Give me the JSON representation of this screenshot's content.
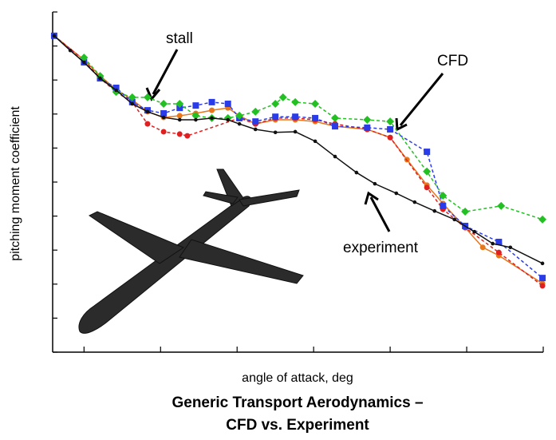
{
  "chart_data": {
    "type": "line",
    "title": [
      "Generic Transport Aerodynamics –",
      "CFD vs. Experiment"
    ],
    "xlabel": "angle of attack, deg",
    "ylabel": "pitching moment coefficient",
    "xlim": [
      -0.41,
      6
    ],
    "ylim": [
      0,
      10
    ],
    "xticks": [
      0,
      1,
      2,
      3,
      4,
      5,
      6
    ],
    "yticks": [
      0,
      1,
      2,
      3,
      4,
      5,
      6,
      7,
      8,
      9,
      10
    ],
    "annotations": [
      "stall",
      "CFD",
      "experiment"
    ],
    "series": [
      {
        "color": "#e8761b",
        "marker": "circle",
        "dash": false,
        "x": [
          -0.39,
          0,
          0.21,
          0.42,
          0.63,
          0.83,
          1.04,
          1.25,
          1.46,
          1.67,
          1.88,
          2.03,
          2.24,
          2.5,
          2.76,
          3.02,
          3.28,
          3.7,
          4.0,
          4.22,
          4.48,
          4.69,
          4.98,
          5.21,
          5.42,
          5.99
        ],
        "values": [
          9.3,
          8.59,
          8.12,
          7.72,
          7.42,
          7.07,
          6.9,
          6.95,
          7.02,
          7.11,
          7.18,
          6.95,
          6.71,
          6.83,
          6.83,
          6.78,
          6.64,
          6.55,
          6.31,
          5.66,
          4.91,
          4.37,
          3.66,
          3.08,
          2.84,
          2.02
        ]
      },
      {
        "color": "#e02020",
        "marker": "circle",
        "dash": true,
        "x": [
          -0.39,
          0,
          0.21,
          0.42,
          0.63,
          0.83,
          1.04,
          1.25,
          1.35,
          2.03,
          2.24,
          2.5,
          2.76,
          3.02,
          3.28,
          3.7,
          4.0,
          4.48,
          4.69,
          4.98,
          5.42,
          5.99
        ],
        "values": [
          9.3,
          8.59,
          8.05,
          7.65,
          7.35,
          6.71,
          6.48,
          6.41,
          6.36,
          6.88,
          6.71,
          6.88,
          6.88,
          6.83,
          6.71,
          6.55,
          6.31,
          4.84,
          4.2,
          3.66,
          2.93,
          1.95
        ]
      },
      {
        "color": "#2a3ce8",
        "marker": "square",
        "dash": true,
        "x": [
          -0.39,
          0,
          0.21,
          0.42,
          0.63,
          0.83,
          1.04,
          1.25,
          1.46,
          1.67,
          1.88,
          2.03,
          2.24,
          2.5,
          2.76,
          3.02,
          3.28,
          3.7,
          4.0,
          4.48,
          4.69,
          4.98,
          5.42,
          5.99
        ],
        "values": [
          9.3,
          8.52,
          8.05,
          7.77,
          7.35,
          7.11,
          7.02,
          7.18,
          7.25,
          7.35,
          7.3,
          6.88,
          6.78,
          6.92,
          6.92,
          6.88,
          6.64,
          6.6,
          6.55,
          5.89,
          4.3,
          3.71,
          3.24,
          2.18
        ]
      },
      {
        "color": "#22c022",
        "marker": "diamond",
        "dash": true,
        "x": [
          0,
          0.21,
          0.42,
          0.63,
          0.83,
          1.04,
          1.25,
          1.46,
          1.67,
          1.88,
          2.03,
          2.24,
          2.5,
          2.6,
          2.76,
          3.02,
          3.28,
          3.7,
          4.0,
          4.48,
          4.69,
          4.98,
          5.45,
          5.99
        ],
        "values": [
          8.66,
          8.12,
          7.65,
          7.49,
          7.49,
          7.3,
          7.3,
          6.95,
          6.88,
          6.88,
          6.95,
          7.07,
          7.3,
          7.49,
          7.35,
          7.3,
          6.88,
          6.83,
          6.78,
          5.31,
          4.6,
          4.13,
          4.3,
          3.9
        ]
      },
      {
        "color": "#111111",
        "marker": "dot",
        "dash": false,
        "x": [
          -0.39,
          -0.18,
          0,
          0.21,
          0.42,
          0.63,
          0.83,
          1.04,
          1.25,
          1.46,
          1.67,
          1.88,
          2.03,
          2.24,
          2.5,
          2.76,
          3.02,
          3.28,
          3.56,
          3.8,
          4.08,
          4.32,
          4.58,
          4.84,
          5.1,
          5.34,
          5.57,
          5.99
        ],
        "values": [
          9.3,
          8.87,
          8.52,
          8.05,
          7.7,
          7.3,
          7.07,
          6.9,
          6.83,
          6.83,
          6.88,
          6.83,
          6.71,
          6.55,
          6.46,
          6.48,
          6.2,
          5.75,
          5.28,
          4.95,
          4.67,
          4.41,
          4.15,
          3.9,
          3.54,
          3.19,
          3.08,
          2.61
        ]
      }
    ]
  }
}
